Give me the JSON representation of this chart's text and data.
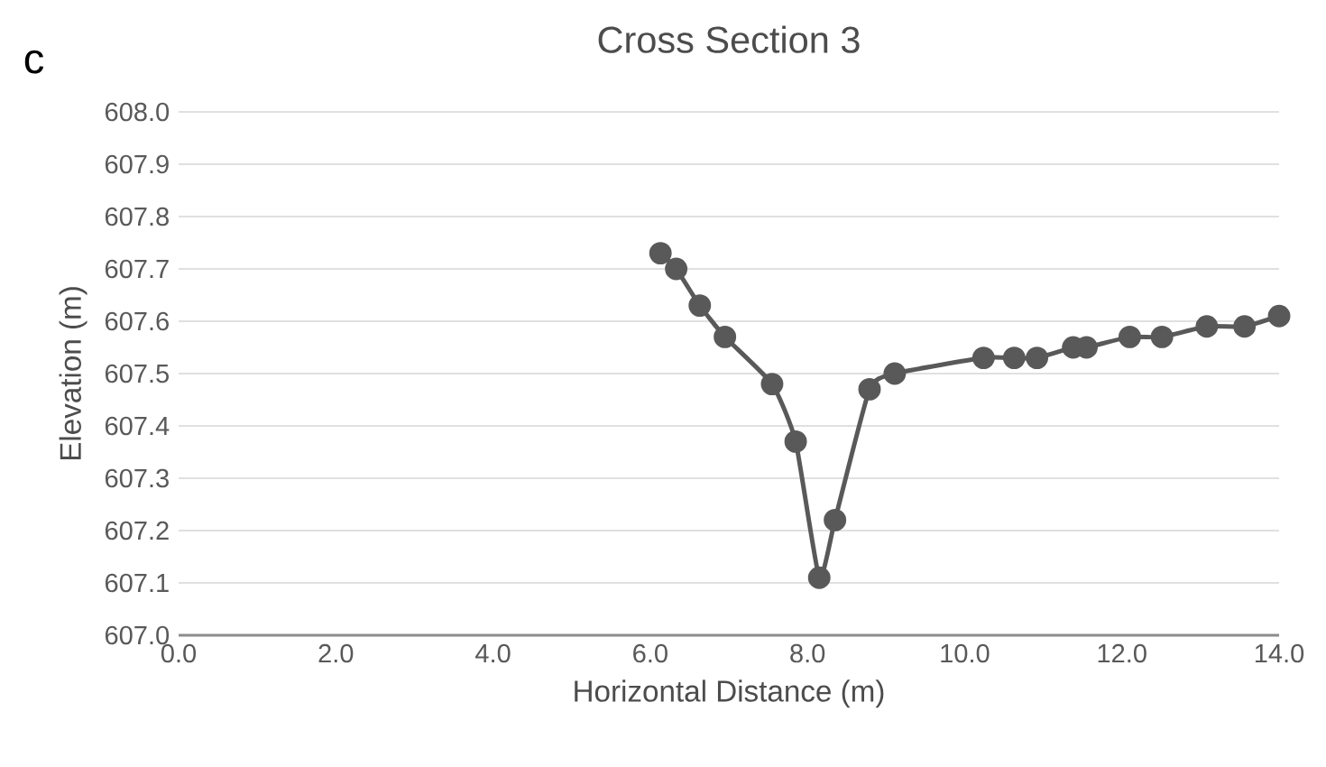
{
  "chart_data": {
    "type": "line",
    "title": "Cross Section 3",
    "annotations": [
      "c"
    ],
    "xlabel": "Horizontal Distance (m)",
    "ylabel": "Elevation (m)",
    "x": [
      6.13,
      6.33,
      6.63,
      6.95,
      7.55,
      7.85,
      8.15,
      8.35,
      8.79,
      9.11,
      10.24,
      10.63,
      10.92,
      11.38,
      11.55,
      12.1,
      12.51,
      13.08,
      13.56,
      14.0
    ],
    "series": [
      {
        "color": "#595959",
        "values": [
          607.73,
          607.7,
          607.63,
          607.57,
          607.48,
          607.37,
          607.11,
          607.22,
          607.47,
          607.5,
          607.53,
          607.53,
          607.53,
          607.55,
          607.55,
          607.57,
          607.57,
          607.59,
          607.59,
          607.61
        ]
      }
    ],
    "xlim": [
      0,
      14
    ],
    "xticks": [
      {
        "value": 0,
        "label": "0.0"
      },
      {
        "value": 2,
        "label": "2.0"
      },
      {
        "value": 4,
        "label": "4.0"
      },
      {
        "value": 6,
        "label": "6.0"
      },
      {
        "value": 8,
        "label": "8.0"
      },
      {
        "value": 10,
        "label": "10.0"
      },
      {
        "value": 12,
        "label": "12.0"
      },
      {
        "value": 14,
        "label": "14.0"
      }
    ],
    "ylim": [
      607,
      608
    ],
    "yticks": [
      {
        "value": 607,
        "label": "607.0"
      },
      {
        "value": 607.1,
        "label": "607.1"
      },
      {
        "value": 607.2,
        "label": "607.2"
      },
      {
        "value": 607.3,
        "label": "607.3"
      },
      {
        "value": 607.4,
        "label": "607.4"
      },
      {
        "value": 607.5,
        "label": "607.5"
      },
      {
        "value": 607.6,
        "label": "607.6"
      },
      {
        "value": 607.7,
        "label": "607.7"
      },
      {
        "value": 607.8,
        "label": "607.8"
      },
      {
        "value": 607.9,
        "label": "607.9"
      },
      {
        "value": 608,
        "label": "608.0"
      }
    ],
    "grid": "y",
    "marker": "circle",
    "line_style": "solid"
  }
}
